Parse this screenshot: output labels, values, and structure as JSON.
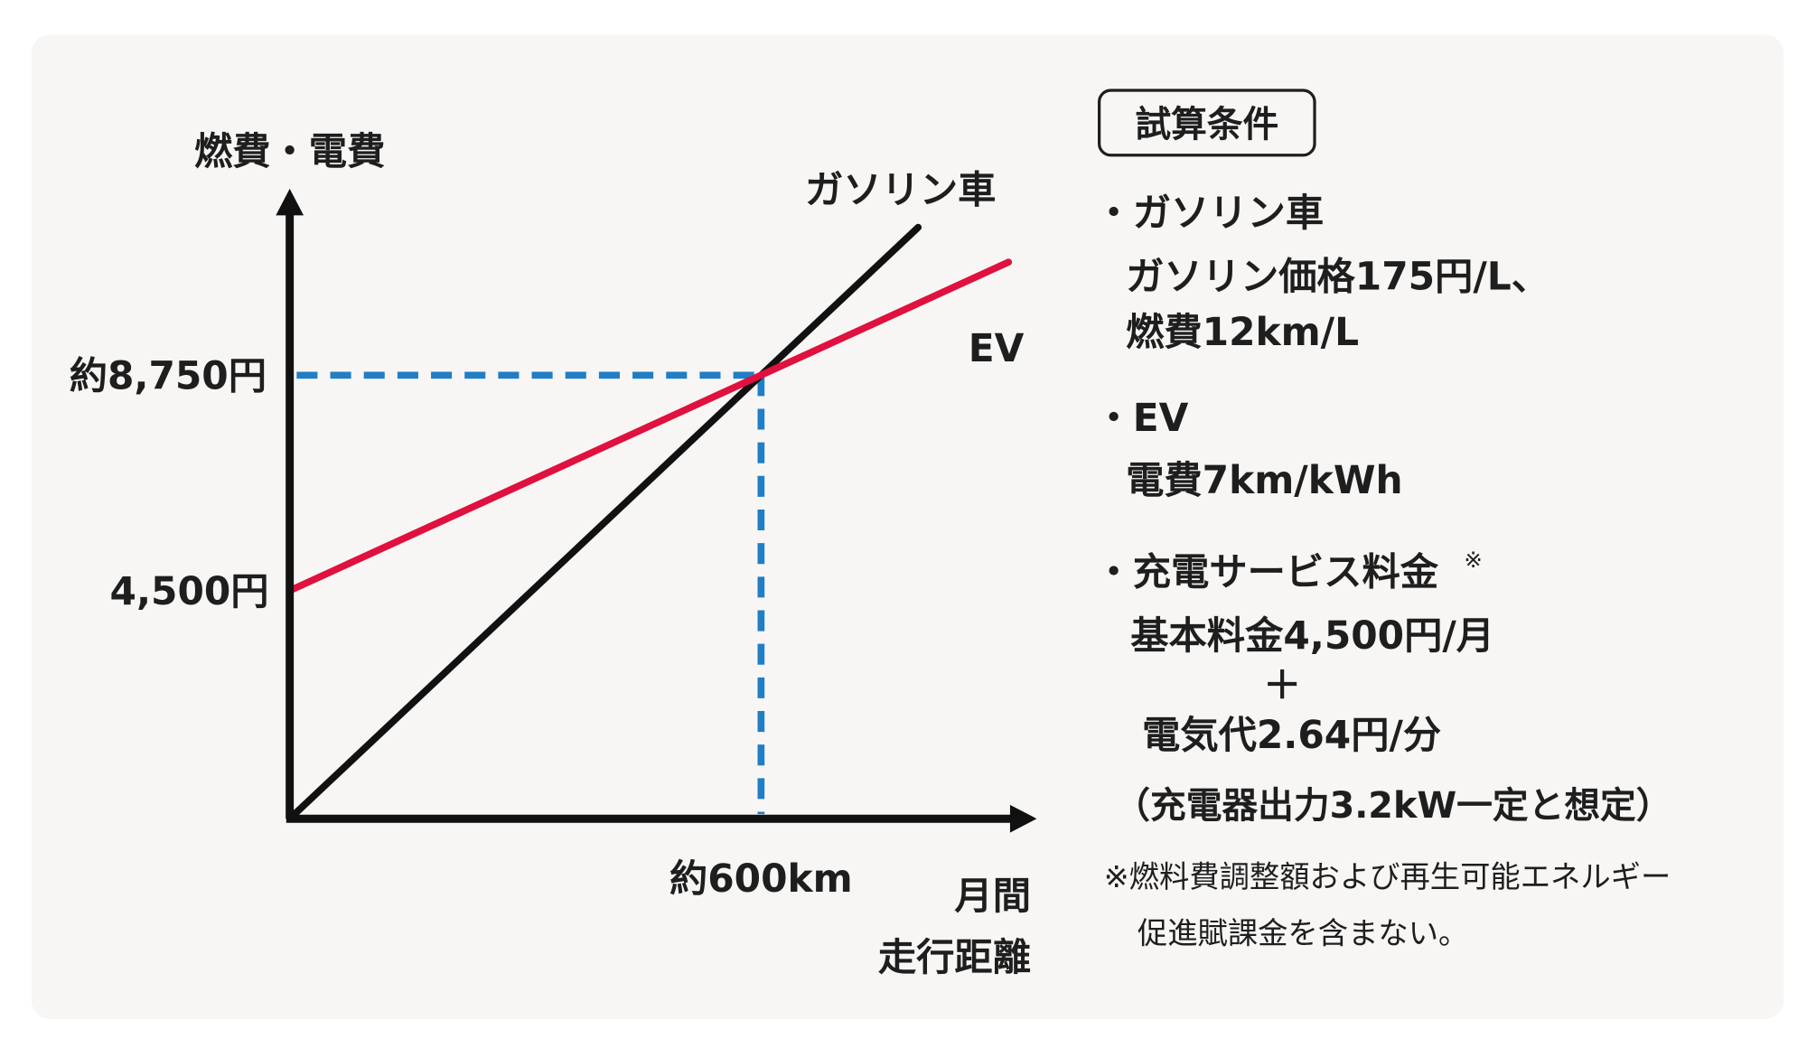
{
  "chart_data": {
    "type": "line",
    "xlabel": [
      "月間",
      "走行距離"
    ],
    "ylabel": "燃費・電費",
    "x_ticks": [
      {
        "value": 600,
        "label": "約600km"
      }
    ],
    "y_ticks": [
      {
        "value": 8750,
        "label": "約8,750円"
      },
      {
        "value": 4500,
        "label": "4,500円"
      }
    ],
    "series": [
      {
        "name": "ガソリン車",
        "color": "#111111",
        "points": [
          [
            0,
            0
          ],
          [
            600,
            8750
          ],
          [
            800,
            11667
          ]
        ]
      },
      {
        "name": "EV",
        "color": "#e0103f",
        "points": [
          [
            0,
            4500
          ],
          [
            600,
            8750
          ],
          [
            915,
            10981
          ]
        ]
      }
    ],
    "crossover": {
      "x": 600,
      "y": 8750,
      "guide_color": "#1f7ec6"
    },
    "grid": false
  },
  "conditions": {
    "title": "試算条件",
    "gasoline_heading": "・ガソリン車",
    "gasoline_line1": "ガソリン価格175円/L、",
    "gasoline_line2": "燃費12km/L",
    "ev_heading": "・EV",
    "ev_line1": "電費7km/kWh",
    "charging_heading": "・充電サービス料金",
    "charging_mark": "※",
    "charging_line1": "基本料金4,500円/月",
    "charging_plus": "＋",
    "charging_line2": "電気代2.64円/分",
    "charging_line3": "（充電器出力3.2kW一定と想定）",
    "footnote_line1": "※燃料費調整額および再生可能エネルギー",
    "footnote_line2": "促進賦課金を含まない。"
  }
}
